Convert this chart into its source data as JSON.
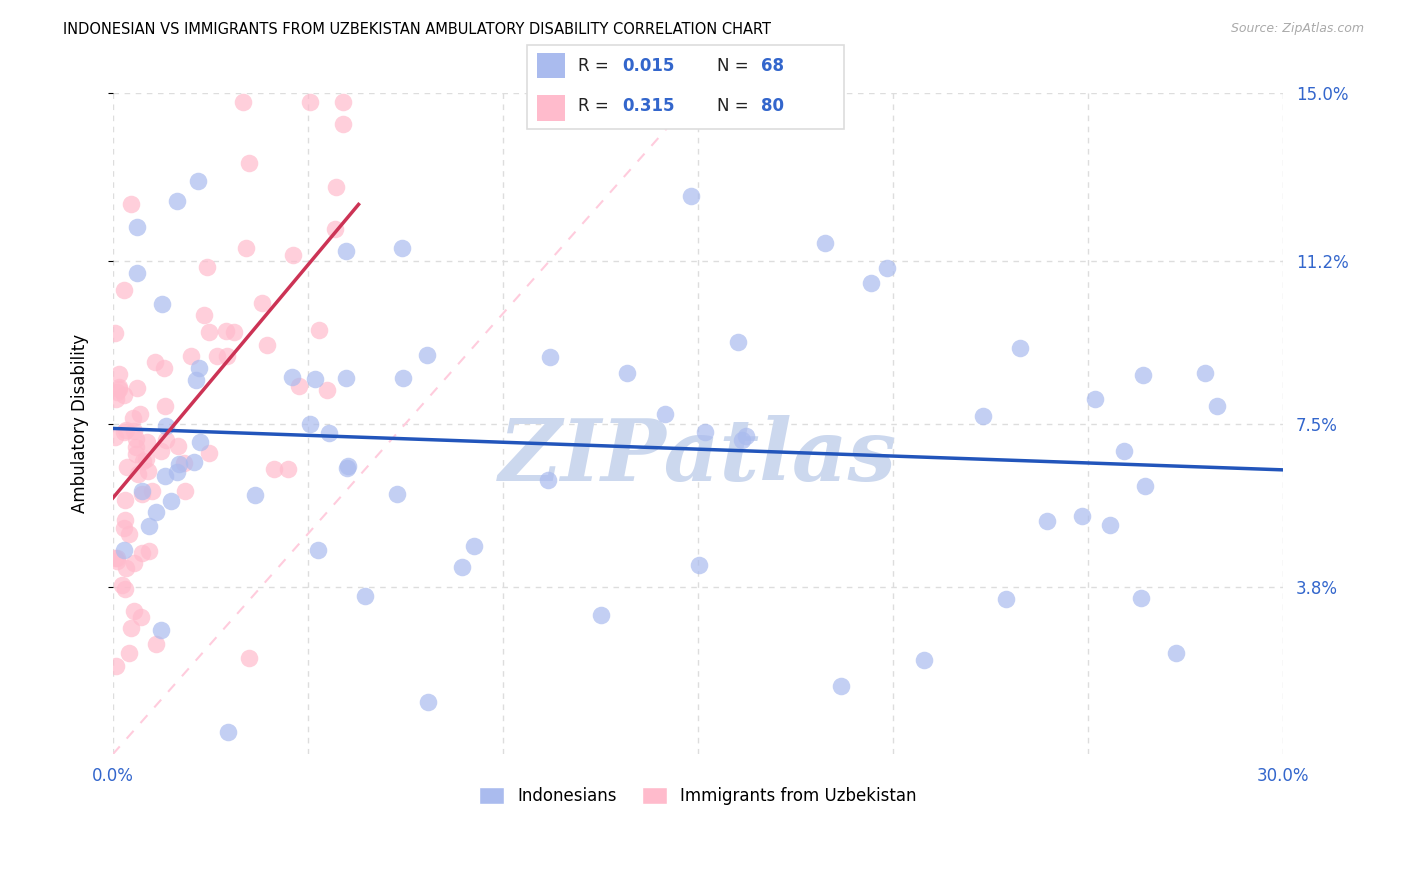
{
  "title": "INDONESIAN VS IMMIGRANTS FROM UZBEKISTAN AMBULATORY DISABILITY CORRELATION CHART",
  "source": "Source: ZipAtlas.com",
  "ylabel": "Ambulatory Disability",
  "xlim": [
    0.0,
    0.3
  ],
  "ylim": [
    0.0,
    0.15
  ],
  "xticks": [
    0.0,
    0.05,
    0.1,
    0.15,
    0.2,
    0.25,
    0.3
  ],
  "xtick_labels": [
    "0.0%",
    "",
    "",
    "",
    "",
    "",
    "30.0%"
  ],
  "ytick_labels_right": [
    "3.8%",
    "7.5%",
    "11.2%",
    "15.0%"
  ],
  "yticks_right": [
    0.038,
    0.075,
    0.112,
    0.15
  ],
  "grid_color": "#dddddd",
  "blue_color": "#aabbee",
  "pink_color": "#ffbbcc",
  "trend_blue_color": "#2255bb",
  "trend_pink_color": "#cc3355",
  "diag_color": "#ffccdd",
  "watermark": "ZIPatlas",
  "watermark_color": "#ccd8ee",
  "legend_r_color": "#3366cc",
  "legend_n_color": "#3366cc",
  "legend_label_color": "#222222",
  "axis_tick_color": "#3366cc",
  "r1": "0.015",
  "n1": "68",
  "r2": "0.315",
  "n2": "80",
  "figsize": [
    14.06,
    8.92
  ],
  "dpi": 100
}
